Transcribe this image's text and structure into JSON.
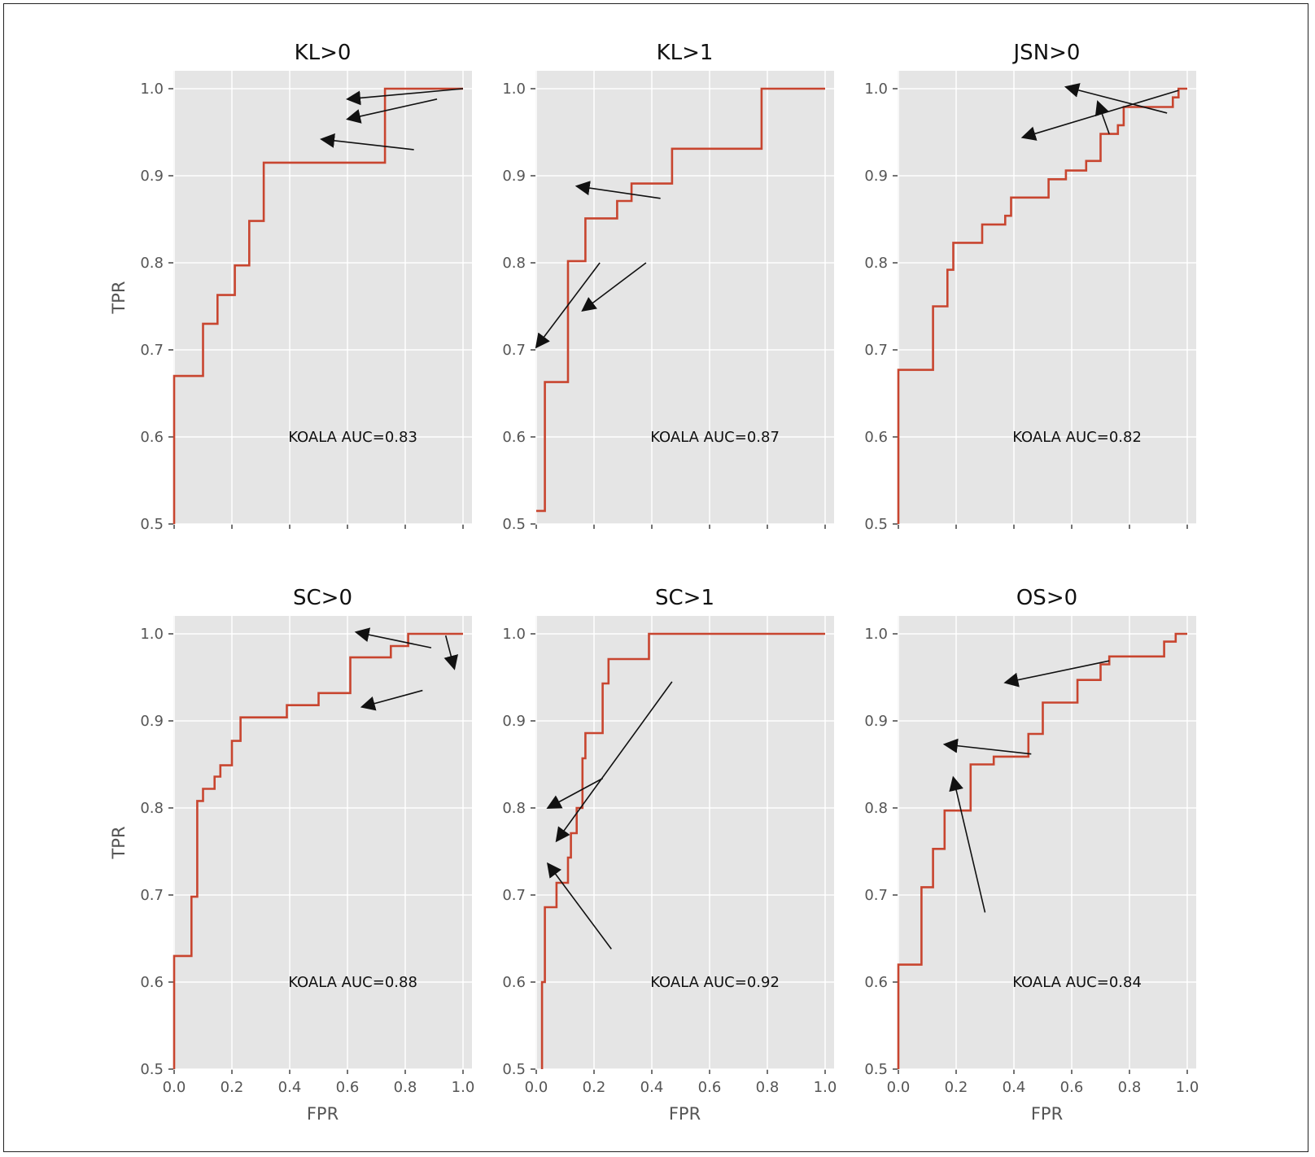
{
  "chart_data": [
    {
      "type": "line",
      "title": "KL>0",
      "xlabel": "",
      "ylabel": "TPR",
      "xlim": [
        0,
        1
      ],
      "ylim": [
        0.5,
        1.0
      ],
      "xticks": [
        "",
        "",
        "",
        "",
        "",
        ""
      ],
      "yticks": [
        "0.5",
        "0.6",
        "0.7",
        "0.8",
        "0.9",
        "1.0"
      ],
      "annotation": "KOALA AUC=0.83",
      "series": [
        {
          "x": [
            0,
            0,
            0.1,
            0.1,
            0.15,
            0.15,
            0.21,
            0.21,
            0.26,
            0.26,
            0.31,
            0.31,
            0.73,
            0.73,
            1.0
          ],
          "y": [
            0.5,
            0.67,
            0.67,
            0.73,
            0.73,
            0.763,
            0.763,
            0.797,
            0.797,
            0.848,
            0.848,
            0.915,
            0.915,
            1.0,
            1.0
          ]
        }
      ],
      "arrows": [
        {
          "from": [
            1.0,
            1.0
          ],
          "to": [
            0.6,
            0.988
          ]
        },
        {
          "from": [
            0.91,
            0.988
          ],
          "to": [
            0.6,
            0.965
          ]
        },
        {
          "from": [
            0.83,
            0.93
          ],
          "to": [
            0.51,
            0.942
          ]
        }
      ]
    },
    {
      "type": "line",
      "title": "KL>1",
      "xlabel": "",
      "ylabel": "",
      "xlim": [
        0,
        1
      ],
      "ylim": [
        0.5,
        1.0
      ],
      "xticks": [
        "",
        "",
        "",
        "",
        "",
        ""
      ],
      "yticks": [
        "0.5",
        "0.6",
        "0.7",
        "0.8",
        "0.9",
        "1.0"
      ],
      "annotation": "KOALA AUC=0.87",
      "series": [
        {
          "x": [
            0,
            0.03,
            0.03,
            0.11,
            0.11,
            0.17,
            0.17,
            0.28,
            0.28,
            0.33,
            0.33,
            0.47,
            0.47,
            0.78,
            0.78,
            1.0
          ],
          "y": [
            0.515,
            0.515,
            0.663,
            0.663,
            0.802,
            0.802,
            0.851,
            0.851,
            0.871,
            0.871,
            0.891,
            0.891,
            0.931,
            0.931,
            1.0,
            1.0
          ]
        }
      ],
      "arrows": [
        {
          "from": [
            0.43,
            0.874
          ],
          "to": [
            0.14,
            0.888
          ]
        },
        {
          "from": [
            0.22,
            0.8
          ],
          "to": [
            0.0,
            0.703
          ]
        },
        {
          "from": [
            0.38,
            0.8
          ],
          "to": [
            0.16,
            0.745
          ]
        }
      ]
    },
    {
      "type": "line",
      "title": "JSN>0",
      "xlabel": "",
      "ylabel": "",
      "xlim": [
        0,
        1
      ],
      "ylim": [
        0.5,
        1.0
      ],
      "xticks": [
        "",
        "",
        "",
        "",
        "",
        ""
      ],
      "yticks": [
        "0.5",
        "0.6",
        "0.7",
        "0.8",
        "0.9",
        "1.0"
      ],
      "annotation": "KOALA AUC=0.82",
      "series": [
        {
          "x": [
            0,
            0,
            0.12,
            0.12,
            0.17,
            0.17,
            0.19,
            0.19,
            0.29,
            0.29,
            0.37,
            0.37,
            0.39,
            0.39,
            0.52,
            0.52,
            0.58,
            0.58,
            0.65,
            0.65,
            0.7,
            0.7,
            0.76,
            0.76,
            0.78,
            0.78,
            0.92,
            0.92,
            0.95,
            0.95,
            0.97,
            0.97,
            1.0
          ],
          "y": [
            0.5,
            0.677,
            0.677,
            0.75,
            0.75,
            0.792,
            0.792,
            0.823,
            0.823,
            0.844,
            0.844,
            0.854,
            0.854,
            0.875,
            0.875,
            0.896,
            0.896,
            0.906,
            0.906,
            0.917,
            0.917,
            0.948,
            0.948,
            0.958,
            0.958,
            0.979,
            0.979,
            0.979,
            0.979,
            0.99,
            0.99,
            1.0,
            1.0
          ]
        }
      ],
      "arrows": [
        {
          "from": [
            0.93,
            0.972
          ],
          "to": [
            0.58,
            1.002
          ]
        },
        {
          "from": [
            0.73,
            0.948
          ],
          "to": [
            0.69,
            0.985
          ]
        },
        {
          "from": [
            0.97,
            0.998
          ],
          "to": [
            0.43,
            0.944
          ]
        }
      ]
    },
    {
      "type": "line",
      "title": "SC>0",
      "xlabel": "FPR",
      "ylabel": "TPR",
      "xlim": [
        0,
        1
      ],
      "ylim": [
        0.5,
        1.0
      ],
      "xticks": [
        "0.0",
        "0.2",
        "0.4",
        "0.6",
        "0.8",
        "1.0"
      ],
      "yticks": [
        "0.5",
        "0.6",
        "0.7",
        "0.8",
        "0.9",
        "1.0"
      ],
      "annotation": "KOALA AUC=0.88",
      "series": [
        {
          "x": [
            0,
            0,
            0.06,
            0.06,
            0.08,
            0.08,
            0.1,
            0.1,
            0.14,
            0.14,
            0.16,
            0.16,
            0.2,
            0.2,
            0.23,
            0.23,
            0.39,
            0.39,
            0.5,
            0.5,
            0.61,
            0.61,
            0.75,
            0.75,
            0.81,
            0.81,
            1.0
          ],
          "y": [
            0.5,
            0.63,
            0.63,
            0.698,
            0.698,
            0.808,
            0.808,
            0.822,
            0.822,
            0.836,
            0.836,
            0.849,
            0.849,
            0.877,
            0.877,
            0.904,
            0.904,
            0.918,
            0.918,
            0.932,
            0.932,
            0.973,
            0.973,
            0.986,
            0.986,
            1.0,
            1.0
          ]
        }
      ],
      "arrows": [
        {
          "from": [
            0.89,
            0.984
          ],
          "to": [
            0.63,
            1.002
          ]
        },
        {
          "from": [
            0.94,
            0.998
          ],
          "to": [
            0.97,
            0.96
          ]
        },
        {
          "from": [
            0.86,
            0.935
          ],
          "to": [
            0.65,
            0.916
          ]
        }
      ]
    },
    {
      "type": "line",
      "title": "SC>1",
      "xlabel": "FPR",
      "ylabel": "",
      "xlim": [
        0,
        1
      ],
      "ylim": [
        0.5,
        1.0
      ],
      "xticks": [
        "0.0",
        "0.2",
        "0.4",
        "0.6",
        "0.8",
        "1.0"
      ],
      "yticks": [
        "0.5",
        "0.6",
        "0.7",
        "0.8",
        "0.9",
        "1.0"
      ],
      "annotation": "KOALA AUC=0.92",
      "series": [
        {
          "x": [
            0.02,
            0.02,
            0.03,
            0.03,
            0.07,
            0.07,
            0.11,
            0.11,
            0.12,
            0.12,
            0.14,
            0.14,
            0.16,
            0.16,
            0.17,
            0.17,
            0.23,
            0.23,
            0.25,
            0.25,
            0.39,
            0.39,
            1.0
          ],
          "y": [
            0.5,
            0.6,
            0.6,
            0.686,
            0.686,
            0.714,
            0.714,
            0.743,
            0.743,
            0.771,
            0.771,
            0.8,
            0.8,
            0.857,
            0.857,
            0.886,
            0.886,
            0.943,
            0.943,
            0.971,
            0.971,
            1.0,
            1.0
          ]
        }
      ],
      "arrows": [
        {
          "from": [
            0.23,
            0.834
          ],
          "to": [
            0.04,
            0.8
          ]
        },
        {
          "from": [
            0.47,
            0.945
          ],
          "to": [
            0.07,
            0.762
          ]
        },
        {
          "from": [
            0.26,
            0.638
          ],
          "to": [
            0.04,
            0.736
          ]
        }
      ]
    },
    {
      "type": "line",
      "title": "OS>0",
      "xlabel": "FPR",
      "ylabel": "",
      "xlim": [
        0,
        1
      ],
      "ylim": [
        0.5,
        1.0
      ],
      "xticks": [
        "0.0",
        "0.2",
        "0.4",
        "0.6",
        "0.8",
        "1.0"
      ],
      "yticks": [
        "0.5",
        "0.6",
        "0.7",
        "0.8",
        "0.9",
        "1.0"
      ],
      "annotation": "KOALA AUC=0.84",
      "series": [
        {
          "x": [
            0,
            0,
            0.08,
            0.08,
            0.12,
            0.12,
            0.16,
            0.16,
            0.25,
            0.25,
            0.33,
            0.33,
            0.45,
            0.45,
            0.5,
            0.5,
            0.62,
            0.62,
            0.7,
            0.7,
            0.73,
            0.73,
            0.77,
            0.77,
            0.92,
            0.92,
            0.96,
            0.96,
            1.0
          ],
          "y": [
            0.5,
            0.62,
            0.62,
            0.709,
            0.709,
            0.753,
            0.753,
            0.797,
            0.797,
            0.85,
            0.85,
            0.859,
            0.859,
            0.885,
            0.885,
            0.921,
            0.921,
            0.947,
            0.947,
            0.965,
            0.965,
            0.974,
            0.974,
            0.974,
            0.974,
            0.991,
            0.991,
            1.0,
            1.0
          ]
        }
      ],
      "arrows": [
        {
          "from": [
            0.73,
            0.969
          ],
          "to": [
            0.37,
            0.944
          ]
        },
        {
          "from": [
            0.46,
            0.862
          ],
          "to": [
            0.16,
            0.873
          ]
        },
        {
          "from": [
            0.3,
            0.68
          ],
          "to": [
            0.19,
            0.835
          ]
        }
      ]
    }
  ],
  "colors": {
    "plot_background": "#e5e5e5",
    "grid": "#ffffff",
    "curve": "#c8452f",
    "arrow": "#111111",
    "tick_text": "#555555"
  }
}
